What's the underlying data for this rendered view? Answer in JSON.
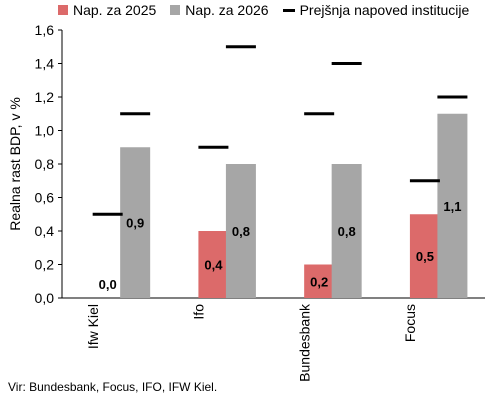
{
  "chart_data": {
    "type": "bar",
    "categories": [
      "Ifw Kiel",
      "Ifo",
      "Bundesbank",
      "Focus"
    ],
    "series": [
      {
        "name": "Nap. za 2025",
        "values": [
          0.0,
          0.4,
          0.2,
          0.5
        ],
        "color": "#dc6a6a",
        "labels": [
          "0,0",
          "0,4",
          "0,2",
          "0,5"
        ]
      },
      {
        "name": "Nap. za 2026",
        "values": [
          0.9,
          0.8,
          0.8,
          1.1
        ],
        "color": "#a6a6a6",
        "labels": [
          "0,9",
          "0,8",
          "0,8",
          "1,1"
        ]
      }
    ],
    "markers": {
      "name": "Prejšnja napoved institucije",
      "values_2025": [
        0.5,
        0.9,
        1.1,
        0.7
      ],
      "values_2026": [
        1.1,
        1.5,
        1.4,
        1.2
      ],
      "color": "#000000"
    },
    "ylabel": "Realna rast BDP, v %",
    "ylim": [
      0,
      1.6
    ],
    "yticks": [
      "0,0",
      "0,2",
      "0,4",
      "0,6",
      "0,8",
      "1,0",
      "1,2",
      "1,4",
      "1,6"
    ],
    "grid": false,
    "legend_position": "top"
  },
  "source": "Vir: Bundesbank, Focus, IFO, IFW Kiel."
}
